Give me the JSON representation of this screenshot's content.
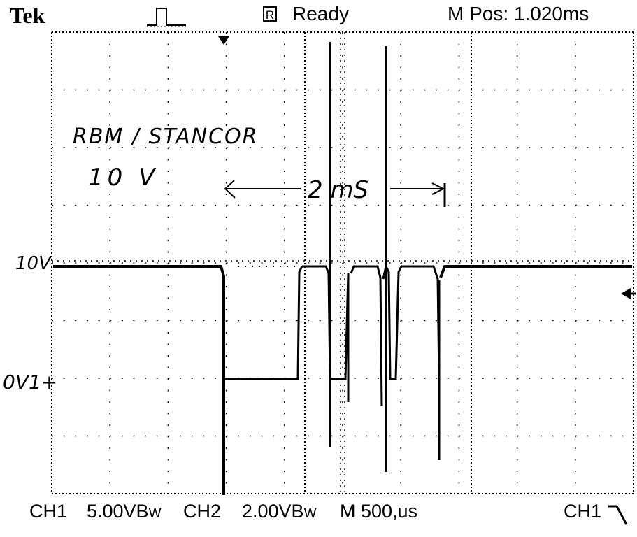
{
  "header": {
    "brand": "Tek",
    "acquisition_icon_letter": "R",
    "status": "Ready",
    "m_pos": "M Pos: 1.020ms"
  },
  "footer": {
    "ch1_label": "CH1",
    "ch1_scale": "5.00VB",
    "ch1_bw": "W",
    "ch2_label": "CH2",
    "ch2_scale": "2.00VB",
    "ch2_bw": "W",
    "timebase": "M 500,us",
    "trigger_source": "CH1"
  },
  "annotations": {
    "title": "RBM / STANCOR",
    "voltage": "10 V",
    "interval": "2 mS",
    "level_10v": "10V",
    "level_0v": "0V1+"
  },
  "colors": {
    "trace": "#000000",
    "grid": "#000000",
    "background": "#ffffff"
  }
}
